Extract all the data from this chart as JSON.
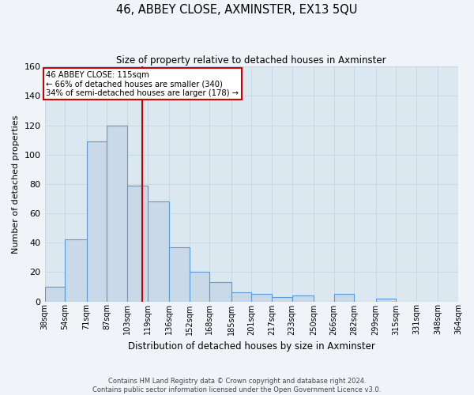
{
  "title": "46, ABBEY CLOSE, AXMINSTER, EX13 5QU",
  "subtitle": "Size of property relative to detached houses in Axminster",
  "xlabel": "Distribution of detached houses by size in Axminster",
  "ylabel": "Number of detached properties",
  "bin_labels": [
    "38sqm",
    "54sqm",
    "71sqm",
    "87sqm",
    "103sqm",
    "119sqm",
    "136sqm",
    "152sqm",
    "168sqm",
    "185sqm",
    "201sqm",
    "217sqm",
    "233sqm",
    "250sqm",
    "266sqm",
    "282sqm",
    "299sqm",
    "315sqm",
    "331sqm",
    "348sqm",
    "364sqm"
  ],
  "bin_edges": [
    38,
    54,
    71,
    87,
    103,
    119,
    136,
    152,
    168,
    185,
    201,
    217,
    233,
    250,
    266,
    282,
    299,
    315,
    331,
    348,
    364
  ],
  "bar_heights": [
    10,
    42,
    109,
    120,
    79,
    68,
    37,
    20,
    13,
    6,
    5,
    3,
    4,
    0,
    5,
    0,
    2,
    0,
    0,
    0
  ],
  "bar_facecolor": "#c9d9e8",
  "bar_edgecolor": "#5b9bd5",
  "property_value": 115,
  "vline_color": "#cc0000",
  "box_text_line1": "46 ABBEY CLOSE: 115sqm",
  "box_text_line2": "← 66% of detached houses are smaller (340)",
  "box_text_line3": "34% of semi-detached houses are larger (178) →",
  "box_facecolor": "#ffffff",
  "box_edgecolor": "#cc0000",
  "ylim": [
    0,
    160
  ],
  "yticks": [
    0,
    20,
    40,
    60,
    80,
    100,
    120,
    140,
    160
  ],
  "grid_color": "#c8d8e8",
  "background_color": "#dce8f0",
  "fig_facecolor": "#f0f4f8",
  "footer_line1": "Contains HM Land Registry data © Crown copyright and database right 2024.",
  "footer_line2": "Contains public sector information licensed under the Open Government Licence v3.0."
}
